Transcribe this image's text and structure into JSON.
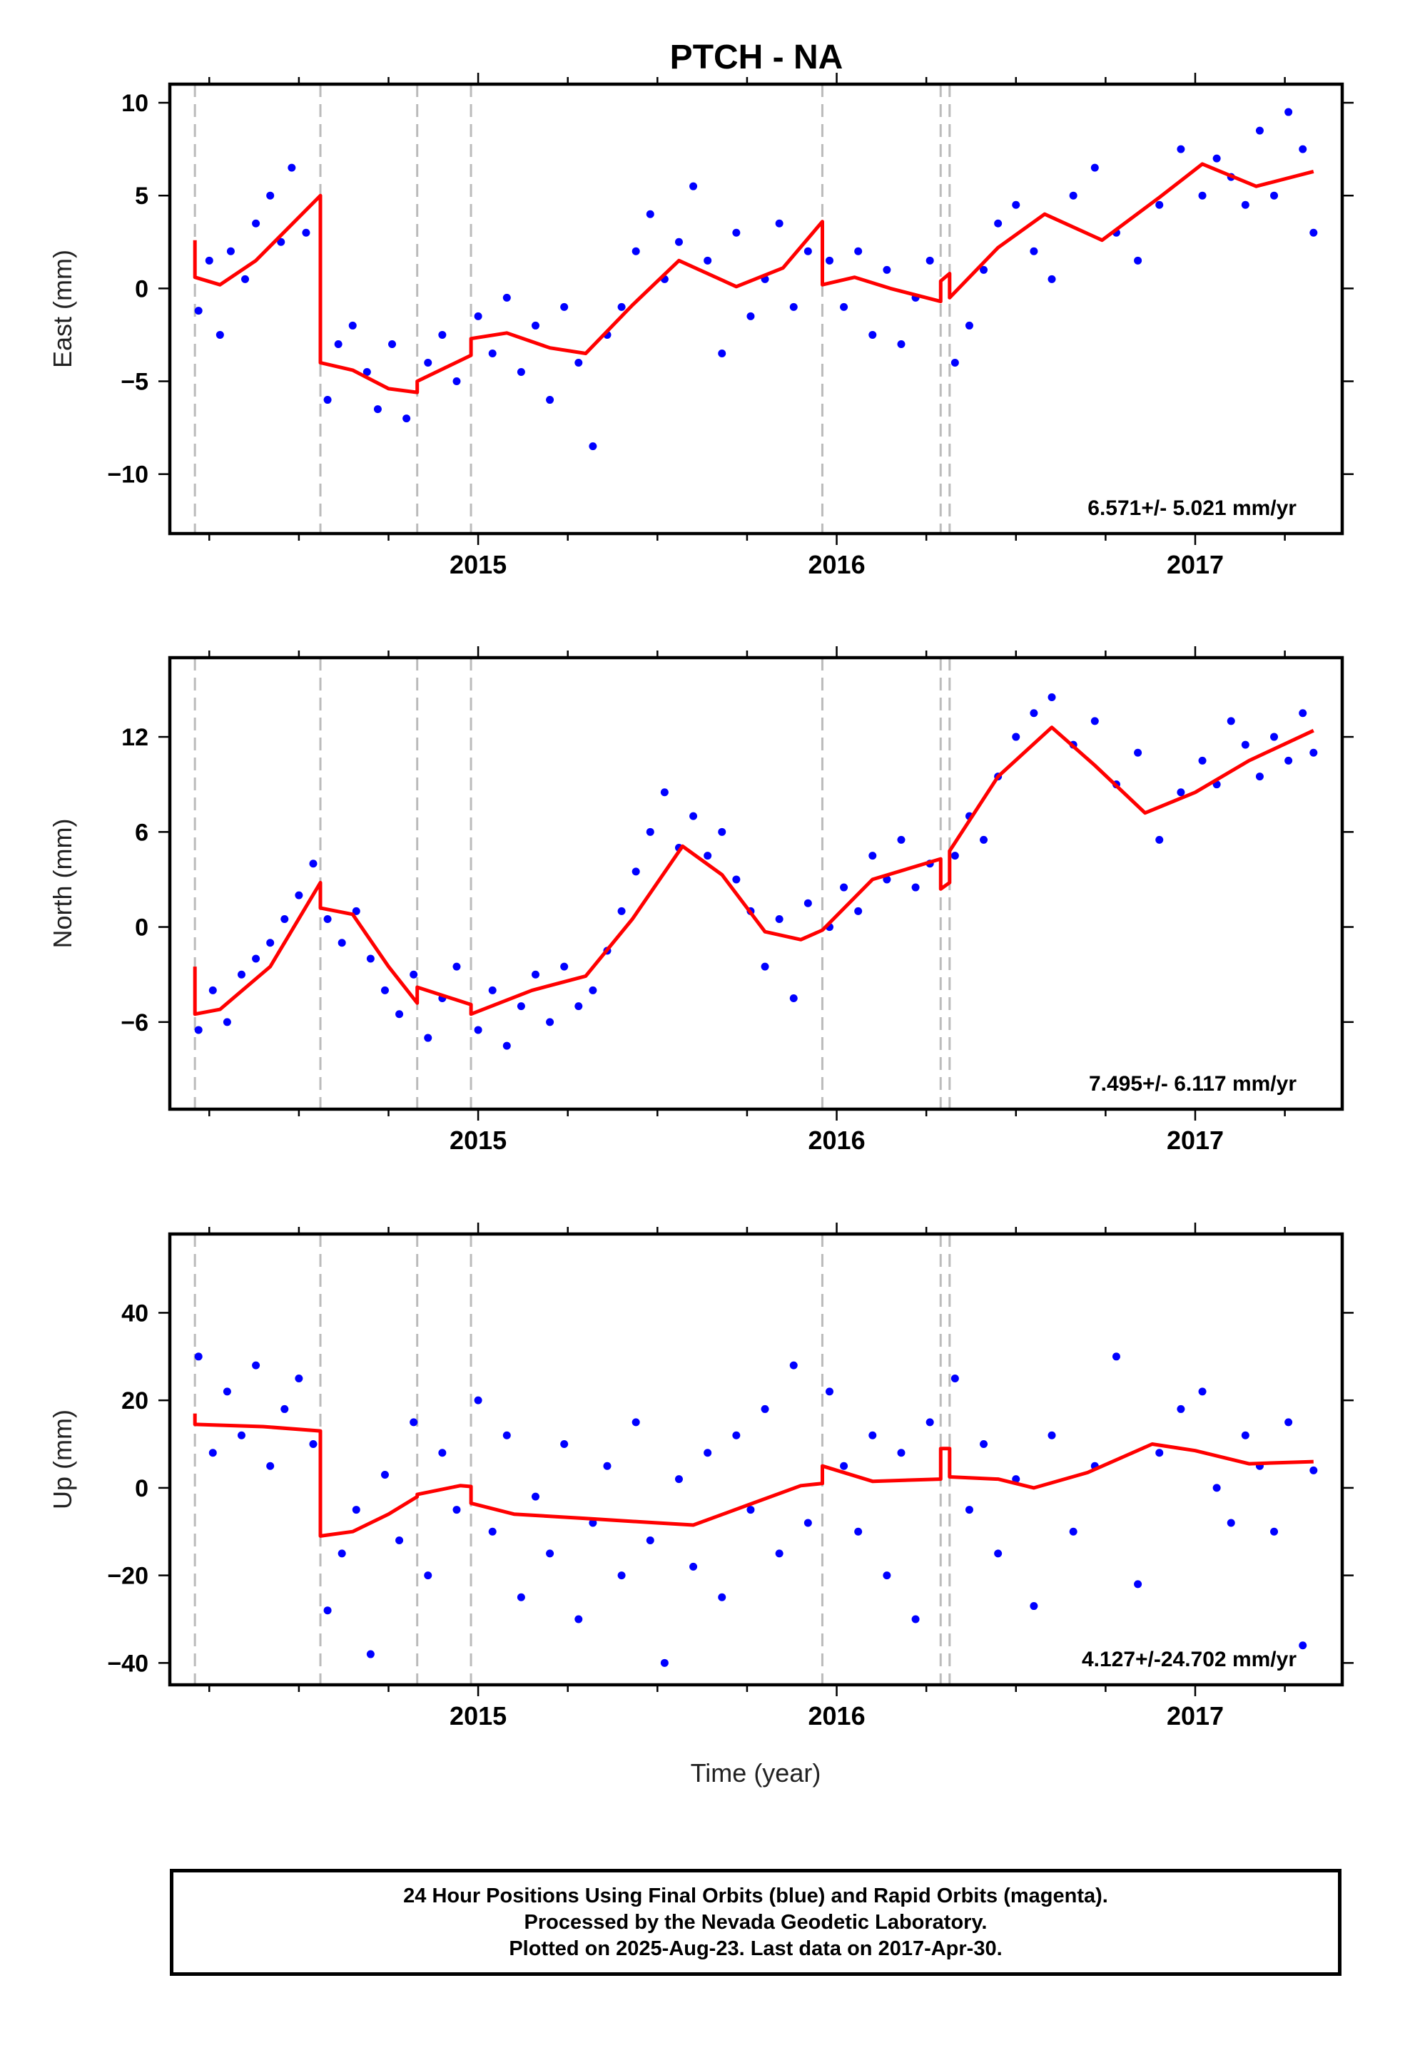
{
  "title": "PTCH - NA",
  "xlabel": "Time (year)",
  "footer": [
    "24 Hour Positions Using Final Orbits (blue) and Rapid Orbits (magenta).",
    "Processed by the Nevada Geodetic Laboratory.",
    "Plotted on 2025-Aug-23. Last data on 2017-Apr-30."
  ],
  "colors": {
    "points": "#0000ff",
    "fit": "#ff0000",
    "event_lines": "#bbbbbb",
    "frame": "#000000"
  },
  "chart_data": [
    {
      "type": "scatter",
      "component": "east",
      "ylabel": "East (mm)",
      "rate_text": "6.571+/- 5.021 mm/yr",
      "xlim": [
        2014.14,
        2017.41
      ],
      "ylim": [
        -13.2,
        11.0
      ],
      "xticks": [
        2015,
        2016,
        2017
      ],
      "yticks": [
        10,
        5,
        0,
        -5,
        -10
      ],
      "event_lines": [
        2014.21,
        2014.56,
        2014.83,
        2014.98,
        2015.96,
        2016.29,
        2016.315
      ],
      "series": [
        {
          "role": "fit",
          "x": [
            2014.21,
            2014.21,
            2014.28,
            2014.38,
            2014.56,
            2014.56,
            2014.65,
            2014.75,
            2014.83,
            2014.83,
            2014.98,
            2014.98,
            2015.08,
            2015.2,
            2015.3,
            2015.43,
            2015.56,
            2015.72,
            2015.85,
            2015.96,
            2015.96,
            2016.05,
            2016.15,
            2016.29,
            2016.29,
            2016.315,
            2016.315,
            2016.45,
            2016.58,
            2016.74,
            2016.9,
            2017.02,
            2017.17,
            2017.33
          ],
          "y": [
            2.6,
            0.6,
            0.2,
            1.5,
            5.0,
            -4.0,
            -4.4,
            -5.4,
            -5.6,
            -5.0,
            -3.6,
            -2.7,
            -2.4,
            -3.2,
            -3.5,
            -0.9,
            1.5,
            0.1,
            1.1,
            3.6,
            0.2,
            0.6,
            0.0,
            -0.7,
            0.4,
            0.8,
            -0.5,
            2.2,
            4.0,
            2.6,
            4.9,
            6.7,
            5.5,
            6.3
          ]
        },
        {
          "role": "observed",
          "x": [
            2014.22,
            2014.25,
            2014.28,
            2014.31,
            2014.35,
            2014.38,
            2014.42,
            2014.45,
            2014.48,
            2014.52,
            2014.58,
            2014.61,
            2014.65,
            2014.69,
            2014.72,
            2014.76,
            2014.8,
            2014.86,
            2014.9,
            2014.94,
            2015.0,
            2015.04,
            2015.08,
            2015.12,
            2015.16,
            2015.2,
            2015.24,
            2015.28,
            2015.32,
            2015.36,
            2015.4,
            2015.44,
            2015.48,
            2015.52,
            2015.56,
            2015.6,
            2015.64,
            2015.68,
            2015.72,
            2015.76,
            2015.8,
            2015.84,
            2015.88,
            2015.92,
            2015.98,
            2016.02,
            2016.06,
            2016.1,
            2016.14,
            2016.18,
            2016.22,
            2016.26,
            2016.33,
            2016.37,
            2016.41,
            2016.45,
            2016.5,
            2016.55,
            2016.6,
            2016.66,
            2016.72,
            2016.78,
            2016.84,
            2016.9,
            2016.96,
            2017.02,
            2017.06,
            2017.1,
            2017.14,
            2017.18,
            2017.22,
            2017.26,
            2017.3,
            2017.33
          ],
          "y": [
            -1.2,
            1.5,
            -2.5,
            2.0,
            0.5,
            3.5,
            5.0,
            2.5,
            6.5,
            3.0,
            -6.0,
            -3.0,
            -2.0,
            -4.5,
            -6.5,
            -3.0,
            -7.0,
            -4.0,
            -2.5,
            -5.0,
            -1.5,
            -3.5,
            -0.5,
            -4.5,
            -2.0,
            -6.0,
            -1.0,
            -4.0,
            -8.5,
            -2.5,
            -1.0,
            2.0,
            4.0,
            0.5,
            2.5,
            5.5,
            1.5,
            -3.5,
            3.0,
            -1.5,
            0.5,
            3.5,
            -1.0,
            2.0,
            1.5,
            -1.0,
            2.0,
            -2.5,
            1.0,
            -3.0,
            -0.5,
            1.5,
            -4.0,
            -2.0,
            1.0,
            3.5,
            4.5,
            2.0,
            0.5,
            5.0,
            6.5,
            3.0,
            1.5,
            4.5,
            7.5,
            5.0,
            7.0,
            6.0,
            4.5,
            8.5,
            5.0,
            9.5,
            7.5,
            3.0
          ]
        }
      ]
    },
    {
      "type": "scatter",
      "component": "north",
      "ylabel": "North (mm)",
      "rate_text": "7.495+/- 6.117 mm/yr",
      "xlim": [
        2014.14,
        2017.41
      ],
      "ylim": [
        -11.5,
        17.0
      ],
      "xticks": [
        2015,
        2016,
        2017
      ],
      "yticks": [
        12,
        6,
        0,
        -6
      ],
      "event_lines": [
        2014.21,
        2014.56,
        2014.83,
        2014.98,
        2015.96,
        2016.29,
        2016.315
      ],
      "series": [
        {
          "role": "fit",
          "x": [
            2014.21,
            2014.21,
            2014.28,
            2014.42,
            2014.56,
            2014.56,
            2014.65,
            2014.75,
            2014.83,
            2014.83,
            2014.98,
            2014.98,
            2015.15,
            2015.3,
            2015.43,
            2015.57,
            2015.68,
            2015.8,
            2015.9,
            2015.96,
            2015.96,
            2016.1,
            2016.29,
            2016.29,
            2016.315,
            2016.315,
            2016.45,
            2016.6,
            2016.72,
            2016.86,
            2017.0,
            2017.15,
            2017.33
          ],
          "y": [
            -2.5,
            -5.5,
            -5.2,
            -2.5,
            2.8,
            1.2,
            0.8,
            -2.5,
            -4.8,
            -3.8,
            -4.9,
            -5.5,
            -4.0,
            -3.1,
            0.5,
            5.1,
            3.3,
            -0.3,
            -0.8,
            -0.2,
            -0.2,
            3.0,
            4.3,
            2.4,
            2.8,
            4.8,
            9.5,
            12.6,
            10.2,
            7.2,
            8.5,
            10.5,
            12.4
          ]
        },
        {
          "role": "observed",
          "x": [
            2014.22,
            2014.26,
            2014.3,
            2014.34,
            2014.38,
            2014.42,
            2014.46,
            2014.5,
            2014.54,
            2014.58,
            2014.62,
            2014.66,
            2014.7,
            2014.74,
            2014.78,
            2014.82,
            2014.86,
            2014.9,
            2014.94,
            2015.0,
            2015.04,
            2015.08,
            2015.12,
            2015.16,
            2015.2,
            2015.24,
            2015.28,
            2015.32,
            2015.36,
            2015.4,
            2015.44,
            2015.48,
            2015.52,
            2015.56,
            2015.6,
            2015.64,
            2015.68,
            2015.72,
            2015.76,
            2015.8,
            2015.84,
            2015.88,
            2015.92,
            2015.98,
            2016.02,
            2016.06,
            2016.1,
            2016.14,
            2016.18,
            2016.22,
            2016.26,
            2016.33,
            2016.37,
            2016.41,
            2016.45,
            2016.5,
            2016.55,
            2016.6,
            2016.66,
            2016.72,
            2016.78,
            2016.84,
            2016.9,
            2016.96,
            2017.02,
            2017.06,
            2017.1,
            2017.14,
            2017.18,
            2017.22,
            2017.26,
            2017.3,
            2017.33
          ],
          "y": [
            -6.5,
            -4.0,
            -6.0,
            -3.0,
            -2.0,
            -1.0,
            0.5,
            2.0,
            4.0,
            0.5,
            -1.0,
            1.0,
            -2.0,
            -4.0,
            -5.5,
            -3.0,
            -7.0,
            -4.5,
            -2.5,
            -6.5,
            -4.0,
            -7.5,
            -5.0,
            -3.0,
            -6.0,
            -2.5,
            -5.0,
            -4.0,
            -1.5,
            1.0,
            3.5,
            6.0,
            8.5,
            5.0,
            7.0,
            4.5,
            6.0,
            3.0,
            1.0,
            -2.5,
            0.5,
            -4.5,
            1.5,
            0.0,
            2.5,
            1.0,
            4.5,
            3.0,
            5.5,
            2.5,
            4.0,
            4.5,
            7.0,
            5.5,
            9.5,
            12.0,
            13.5,
            14.5,
            11.5,
            13.0,
            9.0,
            11.0,
            5.5,
            8.5,
            10.5,
            9.0,
            13.0,
            11.5,
            9.5,
            12.0,
            10.5,
            13.5,
            11.0
          ]
        }
      ]
    },
    {
      "type": "scatter",
      "component": "up",
      "ylabel": "Up (mm)",
      "rate_text": "4.127+/-24.702 mm/yr",
      "xlim": [
        2014.14,
        2017.41
      ],
      "ylim": [
        -45.0,
        58.0
      ],
      "xticks": [
        2015,
        2016,
        2017
      ],
      "yticks": [
        40,
        20,
        0,
        -20,
        -40
      ],
      "event_lines": [
        2014.21,
        2014.56,
        2014.83,
        2014.98,
        2015.96,
        2016.29,
        2016.315
      ],
      "series": [
        {
          "role": "fit",
          "x": [
            2014.21,
            2014.21,
            2014.4,
            2014.56,
            2014.56,
            2014.65,
            2014.75,
            2014.83,
            2014.83,
            2014.95,
            2014.98,
            2014.98,
            2015.1,
            2015.3,
            2015.5,
            2015.6,
            2015.75,
            2015.9,
            2015.96,
            2015.96,
            2016.1,
            2016.29,
            2016.29,
            2016.315,
            2016.315,
            2016.45,
            2016.55,
            2016.7,
            2016.88,
            2017.0,
            2017.15,
            2017.33
          ],
          "y": [
            17.0,
            14.5,
            14.0,
            13.0,
            -11.0,
            -10.0,
            -6.0,
            -2.0,
            -1.5,
            0.5,
            0.3,
            -3.5,
            -6.0,
            -7.0,
            -8.0,
            -8.5,
            -4.0,
            0.5,
            1.0,
            5.0,
            1.5,
            2.0,
            9.0,
            9.0,
            2.5,
            2.0,
            0.0,
            3.5,
            10.0,
            8.5,
            5.5,
            6.0
          ]
        },
        {
          "role": "observed",
          "x": [
            2014.22,
            2014.26,
            2014.3,
            2014.34,
            2014.38,
            2014.42,
            2014.46,
            2014.5,
            2014.54,
            2014.58,
            2014.62,
            2014.66,
            2014.7,
            2014.74,
            2014.78,
            2014.82,
            2014.86,
            2014.9,
            2014.94,
            2015.0,
            2015.04,
            2015.08,
            2015.12,
            2015.16,
            2015.2,
            2015.24,
            2015.28,
            2015.32,
            2015.36,
            2015.4,
            2015.44,
            2015.48,
            2015.52,
            2015.56,
            2015.6,
            2015.64,
            2015.68,
            2015.72,
            2015.76,
            2015.8,
            2015.84,
            2015.88,
            2015.92,
            2015.98,
            2016.02,
            2016.06,
            2016.1,
            2016.14,
            2016.18,
            2016.22,
            2016.26,
            2016.33,
            2016.37,
            2016.41,
            2016.45,
            2016.5,
            2016.55,
            2016.6,
            2016.66,
            2016.72,
            2016.78,
            2016.84,
            2016.9,
            2016.96,
            2017.02,
            2017.06,
            2017.1,
            2017.14,
            2017.18,
            2017.22,
            2017.26,
            2017.3,
            2017.33
          ],
          "y": [
            30.0,
            8.0,
            22.0,
            12.0,
            28.0,
            5.0,
            18.0,
            25.0,
            10.0,
            -28.0,
            -15.0,
            -5.0,
            -38.0,
            3.0,
            -12.0,
            15.0,
            -20.0,
            8.0,
            -5.0,
            20.0,
            -10.0,
            12.0,
            -25.0,
            -2.0,
            -15.0,
            10.0,
            -30.0,
            -8.0,
            5.0,
            -20.0,
            15.0,
            -12.0,
            -40.0,
            2.0,
            -18.0,
            8.0,
            -25.0,
            12.0,
            -5.0,
            18.0,
            -15.0,
            28.0,
            -8.0,
            22.0,
            5.0,
            -10.0,
            12.0,
            -20.0,
            8.0,
            -30.0,
            15.0,
            25.0,
            -5.0,
            10.0,
            -15.0,
            2.0,
            -27.0,
            12.0,
            -10.0,
            5.0,
            30.0,
            -22.0,
            8.0,
            18.0,
            22.0,
            0.0,
            -8.0,
            12.0,
            5.0,
            -10.0,
            15.0,
            -36.0,
            4.0
          ]
        }
      ]
    }
  ]
}
